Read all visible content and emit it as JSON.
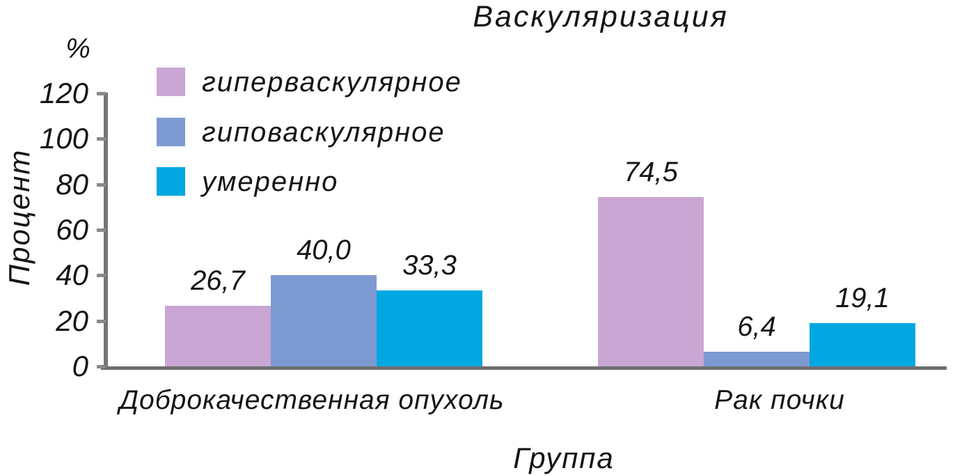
{
  "chart_data": {
    "type": "bar",
    "title": "Васкуляризация",
    "xlabel": "Группа",
    "ylabel": "Процент",
    "ylabel_unit": "%",
    "categories": [
      "Доброкачественная опухоль",
      "Рак почки"
    ],
    "category_slugs": [
      "benign-tumor",
      "kidney-cancer"
    ],
    "series": [
      {
        "name": "гиперваскулярное",
        "slug": "hypervascular",
        "color": "#c9a6d3",
        "values": [
          26.7,
          74.5
        ],
        "labels": [
          "26,7",
          "74,5"
        ]
      },
      {
        "name": "гиповаскулярное",
        "slug": "hypovascular",
        "color": "#7e9ad2",
        "values": [
          40.0,
          6.4
        ],
        "labels": [
          "40,0",
          "6,4"
        ]
      },
      {
        "name": "умеренно",
        "slug": "moderate",
        "color": "#00a7e1",
        "values": [
          33.3,
          19.1
        ],
        "labels": [
          "33,3",
          "19,1"
        ]
      }
    ],
    "ylim": [
      0,
      120
    ],
    "yticks": [
      0,
      20,
      40,
      60,
      80,
      100,
      120
    ],
    "grid": false,
    "legend_position": "upper-left",
    "axis_color": "#757575",
    "text_color": "#151515"
  }
}
